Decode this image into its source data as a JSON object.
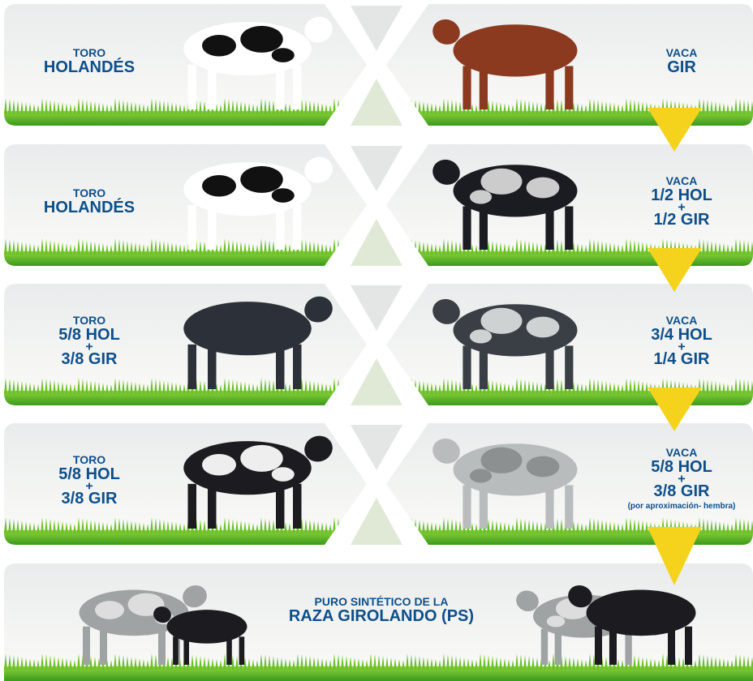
{
  "rows": [
    {
      "bull": {
        "lines": [
          "TORO",
          "HOLANDÉS"
        ]
      },
      "cow": {
        "lines": [
          "VACA",
          "GIR"
        ]
      }
    },
    {
      "bull": {
        "lines": [
          "TORO",
          "HOLANDÉS"
        ]
      },
      "cow": {
        "lines": [
          "VACA",
          "1/2 HOL",
          "+",
          "1/2 GIR"
        ]
      }
    },
    {
      "bull": {
        "lines": [
          "TORO",
          "5/8 HOL",
          "+",
          "3/8 GIR"
        ]
      },
      "cow": {
        "lines": [
          "VACA",
          "3/4 HOL",
          "+",
          "1/4 GIR"
        ]
      }
    },
    {
      "bull": {
        "lines": [
          "TORO",
          "5/8 HOL",
          "+",
          "3/8 GIR"
        ]
      },
      "cow": {
        "lines": [
          "VACA",
          "5/8 HOL",
          "+",
          "3/8 GIR"
        ],
        "note": "(por aproximación- hembra)"
      }
    }
  ],
  "final": {
    "lines": [
      "PURO SINTÉTICO DE LA",
      "RAZA GIROLANDO (PS)"
    ]
  }
}
